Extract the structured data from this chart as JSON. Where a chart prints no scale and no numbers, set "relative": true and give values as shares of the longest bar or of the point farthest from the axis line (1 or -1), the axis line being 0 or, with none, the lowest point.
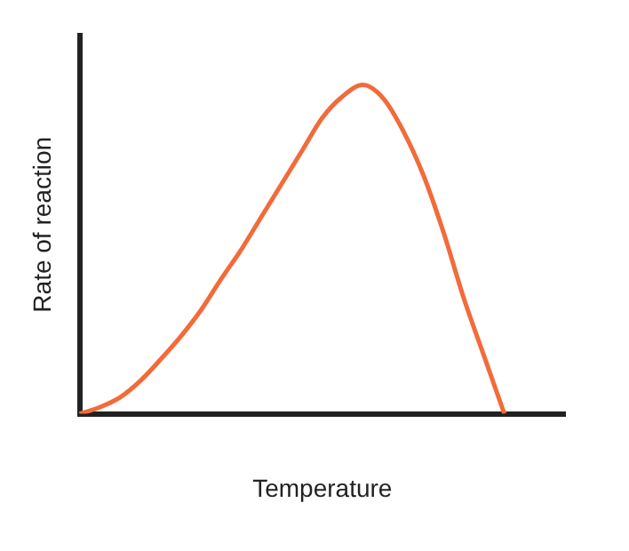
{
  "chart_data": {
    "type": "line",
    "relative": true,
    "xlabel": "Temperature",
    "ylabel": "Rate of reaction",
    "categories": [
      null,
      null,
      null,
      null,
      null,
      null,
      null,
      null,
      null,
      null,
      null,
      null,
      null,
      null,
      null,
      null,
      null,
      null,
      null,
      null,
      null,
      null,
      null,
      null,
      null
    ],
    "series": [
      {
        "color": "#f26b3a",
        "values": [
          0,
          0.02,
          0.05,
          0.1,
          0.165,
          0.235,
          0.315,
          0.41,
          0.5,
          0.6,
          0.7,
          0.8,
          0.9,
          0.965,
          1,
          0.96,
          0.86,
          0.725,
          0.55,
          0.35,
          0.175,
          0,
          null,
          null,
          null
        ]
      }
    ],
    "grid": false,
    "legend": false,
    "marker": "none",
    "line_style": "solid"
  }
}
